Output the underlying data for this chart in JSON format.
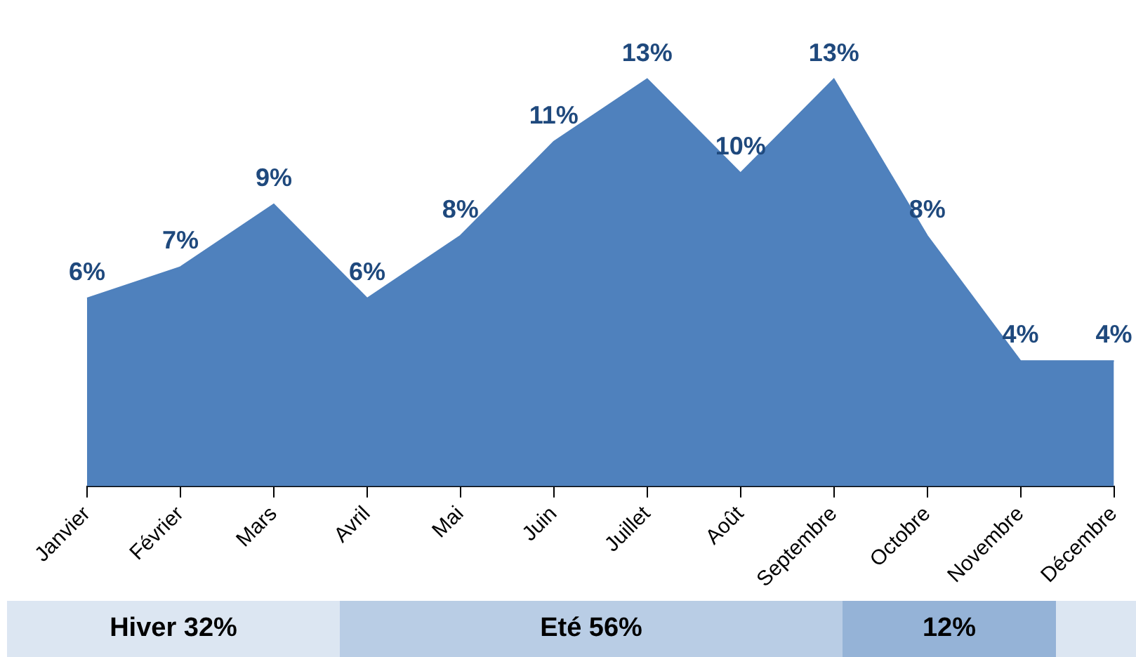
{
  "chart_data": {
    "type": "area",
    "categories": [
      "Janvier",
      "Février",
      "Mars",
      "Avril",
      "Mai",
      "Juin",
      "Juillet",
      "Août",
      "Septembre",
      "Octobre",
      "Novembre",
      "Décembre"
    ],
    "values": [
      6,
      7,
      9,
      6,
      8,
      11,
      13,
      10,
      13,
      8,
      4,
      4
    ],
    "value_labels": [
      "6%",
      "7%",
      "9%",
      "6%",
      "8%",
      "11%",
      "13%",
      "10%",
      "13%",
      "8%",
      "4%",
      "4%"
    ],
    "color": "#4f81bd",
    "grid": false,
    "legend": false,
    "annotations": [
      "Hiver 32%",
      "Eté 56%",
      "12%"
    ]
  }
}
